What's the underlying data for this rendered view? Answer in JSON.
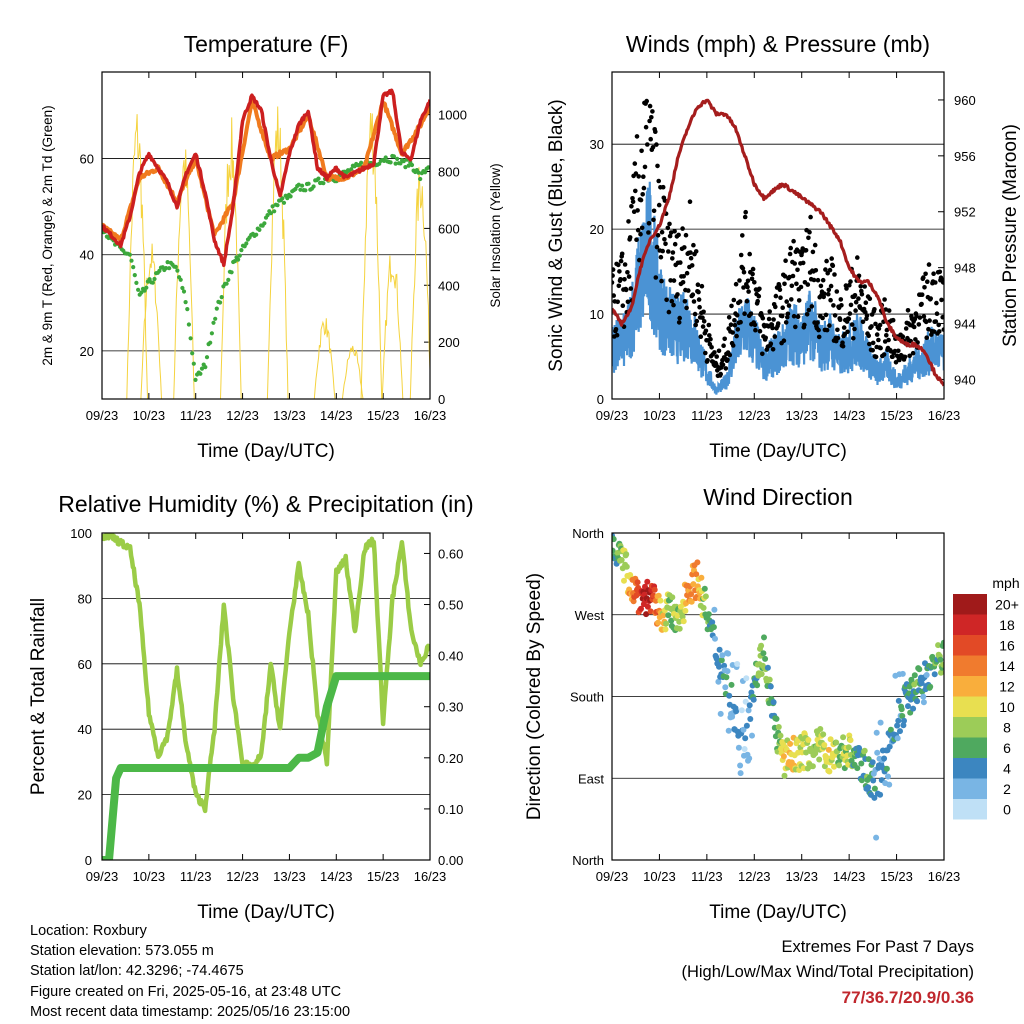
{
  "chart_data": [
    {
      "type": "line",
      "title": "Temperature (F)",
      "xlabel": "Time (Day/UTC)",
      "ylabel": "2m & 9m T (Red, Orange) & 2m Td (Green)",
      "y2label": "Solar Insolation (Yellow)",
      "x_ticks": [
        "09/23",
        "10/23",
        "11/23",
        "12/23",
        "13/23",
        "14/23",
        "15/23",
        "16/23"
      ],
      "xlim": [
        9,
        16
      ],
      "ylim": [
        10,
        78
      ],
      "y_ticks": [
        20,
        40,
        60
      ],
      "y2lim": [
        0,
        1150
      ],
      "y2_ticks": [
        0,
        200,
        400,
        600,
        800,
        1000
      ],
      "grid": "horizontal",
      "series": [
        {
          "name": "2m T",
          "color": "#cc1f1f",
          "x": [
            9.0,
            9.2,
            9.4,
            9.6,
            9.8,
            10.0,
            10.2,
            10.4,
            10.6,
            10.8,
            11.0,
            11.2,
            11.4,
            11.6,
            11.8,
            12.0,
            12.2,
            12.4,
            12.6,
            12.8,
            13.0,
            13.2,
            13.4,
            13.6,
            13.8,
            14.0,
            14.2,
            14.4,
            14.6,
            14.8,
            15.0,
            15.2,
            15.4,
            15.6,
            15.8,
            16.0
          ],
          "y": [
            46,
            44,
            42,
            48,
            57,
            61,
            58,
            55,
            50,
            57,
            61,
            53,
            43,
            38,
            50,
            68,
            73,
            70,
            60,
            52,
            61,
            67,
            70,
            58,
            56,
            58,
            56,
            57,
            58,
            59,
            73,
            74,
            61,
            60,
            68,
            72
          ]
        },
        {
          "name": "9m T",
          "color": "#f07a1e",
          "x": [
            9.0,
            9.4,
            9.8,
            10.2,
            10.6,
            11.0,
            11.4,
            11.8,
            12.2,
            12.6,
            13.0,
            13.4,
            13.8,
            14.2,
            14.6,
            15.0,
            15.4,
            15.8,
            16.0
          ],
          "y": [
            46,
            43,
            56,
            58,
            51,
            60,
            44,
            51,
            72,
            60,
            62,
            69,
            56,
            56,
            58,
            72,
            61,
            67,
            71
          ]
        },
        {
          "name": "2m Td",
          "color": "#3ca83c",
          "x": [
            9.0,
            9.2,
            9.4,
            9.6,
            9.8,
            10.0,
            10.2,
            10.4,
            10.6,
            10.8,
            11.0,
            11.2,
            11.4,
            11.6,
            11.8,
            12.0,
            12.2,
            12.4,
            12.6,
            12.8,
            13.0,
            13.2,
            13.4,
            13.6,
            13.8,
            14.0,
            14.2,
            14.4,
            14.6,
            14.8,
            15.0,
            15.2,
            15.4,
            15.6,
            15.8,
            16.0
          ],
          "y": [
            46,
            43,
            41,
            40,
            31,
            34,
            36,
            38,
            37,
            30,
            14,
            17,
            27,
            33,
            38,
            41,
            44,
            46,
            49,
            51,
            52,
            54,
            54,
            55,
            56,
            56,
            57,
            58,
            59,
            59,
            60,
            60,
            59,
            59,
            56,
            59
          ]
        },
        {
          "name": "Solar Insolation",
          "color": "#f5d33f",
          "axis": "y2",
          "peaks": [
            [
              9.75,
              1050
            ],
            [
              10.05,
              560
            ],
            [
              10.75,
              930
            ],
            [
              11.75,
              1000
            ],
            [
              12.75,
              1060
            ],
            [
              13.75,
              300
            ],
            [
              14.35,
              200
            ],
            [
              14.75,
              1080
            ],
            [
              15.2,
              560
            ],
            [
              15.8,
              860
            ]
          ]
        }
      ]
    },
    {
      "type": "scatter",
      "title": "Winds (mph) & Pressure (mb)",
      "xlabel": "Time (Day/UTC)",
      "ylabel": "Sonic Wind & Gust (Blue, Black)",
      "y2label": "Station Pressure (Maroon)",
      "x_ticks": [
        "09/23",
        "10/23",
        "11/23",
        "12/23",
        "13/23",
        "14/23",
        "15/23",
        "16/23"
      ],
      "xlim": [
        9,
        16
      ],
      "ylim": [
        0,
        38.5
      ],
      "y_ticks": [
        0,
        10,
        20,
        30
      ],
      "y2lim": [
        938.6,
        962
      ],
      "y2_ticks": [
        940,
        944,
        948,
        952,
        956,
        960
      ],
      "grid": "horizontal",
      "series": [
        {
          "name": "Gust",
          "color": "#000000",
          "x": [
            9.0,
            9.3,
            9.6,
            9.8,
            10.0,
            10.2,
            10.4,
            10.6,
            10.8,
            11.0,
            11.2,
            11.4,
            11.6,
            11.8,
            12.0,
            12.2,
            12.4,
            12.6,
            12.8,
            13.0,
            13.2,
            13.4,
            13.6,
            13.8,
            14.0,
            14.2,
            14.4,
            14.6,
            14.8,
            15.0,
            15.2,
            15.4,
            15.6,
            15.8,
            16.0
          ],
          "y": [
            12,
            15,
            28,
            32,
            22,
            18,
            16,
            20,
            14,
            8,
            4,
            6,
            12,
            18,
            14,
            8,
            10,
            12,
            16,
            14,
            18,
            12,
            14,
            10,
            12,
            14,
            10,
            8,
            10,
            6,
            8,
            10,
            12,
            14,
            12
          ]
        },
        {
          "name": "Wind",
          "color": "#4b93d4",
          "x": [
            9.0,
            9.3,
            9.6,
            9.8,
            10.0,
            10.2,
            10.4,
            10.6,
            10.8,
            11.0,
            11.2,
            11.4,
            11.6,
            11.8,
            12.0,
            12.2,
            12.4,
            12.6,
            12.8,
            13.0,
            13.2,
            13.4,
            13.6,
            13.8,
            14.0,
            14.2,
            14.4,
            14.6,
            14.8,
            15.0,
            15.2,
            15.4,
            15.6,
            15.8,
            16.0
          ],
          "y": [
            6,
            7,
            14,
            18,
            11,
            9,
            8,
            9,
            6,
            3,
            1,
            2,
            6,
            9,
            7,
            4,
            5,
            6,
            8,
            7,
            9,
            6,
            7,
            5,
            6,
            7,
            5,
            3,
            4,
            2,
            3,
            4,
            5,
            6,
            5
          ]
        },
        {
          "name": "Pressure",
          "color": "#a51d1d",
          "axis": "y2",
          "x": [
            9.0,
            9.2,
            9.4,
            9.6,
            9.8,
            10.0,
            10.2,
            10.4,
            10.6,
            10.8,
            11.0,
            11.2,
            11.4,
            11.6,
            11.8,
            12.0,
            12.2,
            12.4,
            12.6,
            12.8,
            13.0,
            13.2,
            13.4,
            13.6,
            13.8,
            14.0,
            14.2,
            14.4,
            14.6,
            14.8,
            15.0,
            15.2,
            15.4,
            15.6,
            15.8,
            16.0
          ],
          "y": [
            945,
            944,
            945,
            948,
            950,
            951,
            953,
            956,
            958,
            959.5,
            960,
            959,
            959,
            958,
            956,
            954,
            953,
            953.5,
            954,
            953.5,
            953,
            952.5,
            952,
            951,
            950,
            948,
            947,
            947,
            946,
            944,
            943,
            942.5,
            942.5,
            942,
            940.5,
            939.5
          ]
        }
      ]
    },
    {
      "type": "line",
      "title": "Relative Humidity (%) & Precipitation (in)",
      "xlabel": "Time (Day/UTC)",
      "ylabel": "Percent & Total Rainfall",
      "x_ticks": [
        "09/23",
        "10/23",
        "11/23",
        "12/23",
        "13/23",
        "14/23",
        "15/23",
        "16/23"
      ],
      "xlim": [
        9,
        16
      ],
      "ylim": [
        0,
        100
      ],
      "y_ticks": [
        0,
        20,
        40,
        60,
        80,
        100
      ],
      "y2lim": [
        0,
        0.64
      ],
      "y2_ticks": [
        "0.00",
        "0.10",
        "0.20",
        "0.30",
        "0.40",
        "0.50",
        "0.60"
      ],
      "grid": "horizontal",
      "series": [
        {
          "name": "Relative Humidity",
          "color": "#9bcc47",
          "x": [
            9.0,
            9.2,
            9.4,
            9.6,
            9.8,
            10.0,
            10.2,
            10.4,
            10.6,
            10.8,
            11.0,
            11.2,
            11.4,
            11.6,
            11.8,
            12.0,
            12.2,
            12.4,
            12.6,
            12.8,
            13.0,
            13.2,
            13.4,
            13.6,
            13.8,
            14.0,
            14.2,
            14.4,
            14.6,
            14.8,
            15.0,
            15.2,
            15.4,
            15.6,
            15.8,
            16.0
          ],
          "y": [
            99,
            99,
            97,
            95,
            78,
            45,
            32,
            38,
            58,
            35,
            20,
            16,
            40,
            78,
            50,
            30,
            28,
            32,
            60,
            40,
            70,
            90,
            75,
            45,
            30,
            88,
            92,
            70,
            95,
            98,
            42,
            80,
            97,
            70,
            60,
            66
          ]
        },
        {
          "name": "Total Precipitation",
          "color": "#4cb848",
          "axis": "y2",
          "x": [
            9.0,
            9.15,
            9.3,
            9.4,
            10.0,
            11.0,
            12.0,
            13.0,
            13.2,
            13.4,
            13.6,
            13.8,
            13.9,
            14.0,
            15.0,
            16.0
          ],
          "y": [
            0.0,
            0.0,
            0.16,
            0.18,
            0.18,
            0.18,
            0.18,
            0.18,
            0.2,
            0.2,
            0.21,
            0.3,
            0.33,
            0.36,
            0.36,
            0.36
          ]
        }
      ]
    },
    {
      "type": "scatter",
      "title": "Wind Direction",
      "xlabel": "Time (Day/UTC)",
      "ylabel": "Direction (Colored By Speed)",
      "x_ticks": [
        "09/23",
        "10/23",
        "11/23",
        "12/23",
        "13/23",
        "14/23",
        "15/23",
        "16/23"
      ],
      "xlim": [
        9,
        16
      ],
      "y_ticks": [
        "North",
        "West",
        "South",
        "East",
        "North"
      ],
      "grid": "horizontal",
      "legend_title": "mph",
      "legend_labels": [
        "20+",
        "18",
        "16",
        "14",
        "12",
        "10",
        "8",
        "6",
        "4",
        "2",
        "0"
      ],
      "legend_colors": [
        "#a01a1a",
        "#cf2626",
        "#e24a26",
        "#f07b2e",
        "#f9ae3c",
        "#e8df50",
        "#9ccc58",
        "#4fa95f",
        "#3c86c0",
        "#79b5e4",
        "#bfe0f6"
      ],
      "series": [
        {
          "name": "Direction",
          "x": [
            9.0,
            9.2,
            9.4,
            9.6,
            9.8,
            10.0,
            10.2,
            10.4,
            10.6,
            10.8,
            11.0,
            11.2,
            11.4,
            11.6,
            11.8,
            12.0,
            12.2,
            12.4,
            12.6,
            12.8,
            13.0,
            13.2,
            13.4,
            13.6,
            13.8,
            14.0,
            14.2,
            14.4,
            14.6,
            14.8,
            15.0,
            15.2,
            15.4,
            15.6,
            15.8,
            16.0
          ],
          "direction": [
            355,
            330,
            305,
            290,
            290,
            270,
            275,
            260,
            300,
            310,
            270,
            230,
            200,
            160,
            140,
            200,
            230,
            160,
            110,
            115,
            120,
            120,
            125,
            115,
            118,
            120,
            110,
            95,
            80,
            120,
            150,
            175,
            190,
            200,
            215,
            225
          ],
          "speed": [
            5,
            7,
            12,
            18,
            19,
            12,
            8,
            7,
            14,
            12,
            6,
            3,
            4,
            3,
            2,
            5,
            8,
            4,
            10,
            11,
            9,
            8,
            9,
            10,
            7,
            8,
            5,
            6,
            3,
            4,
            3,
            5,
            6,
            4,
            6,
            7
          ]
        }
      ]
    }
  ],
  "info": {
    "location": "Location: Roxbury",
    "elevation": "Station elevation: 573.055 m",
    "latlon": "Station lat/lon: 42.3296; -74.4675",
    "created": "Figure created on Fri, 2025-05-16, at 23:48 UTC",
    "recent": "Most recent data timestamp: 2025/05/16 23:15:00"
  },
  "extremes": {
    "title": "Extremes For Past 7 Days",
    "subtitle": "(High/Low/Max Wind/Total Precipitation)",
    "values": "77/36.7/20.9/0.36"
  }
}
